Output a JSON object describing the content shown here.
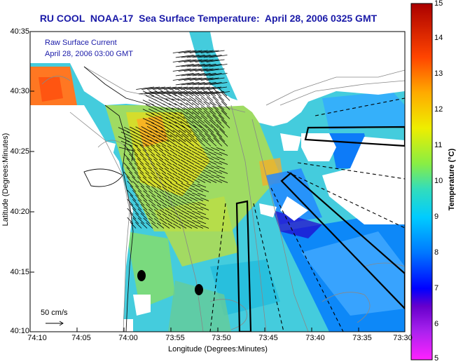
{
  "title": "RU COOL  NOAA-17  Sea Surface Temperature:  April 28, 2006 0325 GMT",
  "current_label_line1": "Raw Surface Current",
  "current_label_line2": "April 28, 2006 03:00 GMT",
  "scale_label": "50 cm/s",
  "x_axis": {
    "title": "Longitude (Degrees:Minutes)",
    "ticks": [
      "74:10",
      "74:05",
      "74:00",
      "73:55",
      "73:50",
      "73:45",
      "73:40",
      "73:35",
      "73:30"
    ]
  },
  "y_axis": {
    "title": "Latitude (Degrees:Minutes)",
    "ticks": [
      "40:35",
      "40:30",
      "40:25",
      "40:20",
      "40:15",
      "40:10"
    ]
  },
  "colorbar": {
    "title": "Temperature (°C)",
    "min": 5,
    "max": 15,
    "ticks": [
      "15",
      "14",
      "13",
      "12",
      "11",
      "10",
      "9",
      "8",
      "7",
      "6",
      "5"
    ],
    "stops": [
      "#ff22ff",
      "#8800cc",
      "#0000ff",
      "#0077ff",
      "#00ccff",
      "#33ddaa",
      "#88ee44",
      "#eeee00",
      "#ffaa00",
      "#ff3300",
      "#aa0000"
    ]
  },
  "land_color": "#ffffff",
  "missing_color": "#ffffff"
}
